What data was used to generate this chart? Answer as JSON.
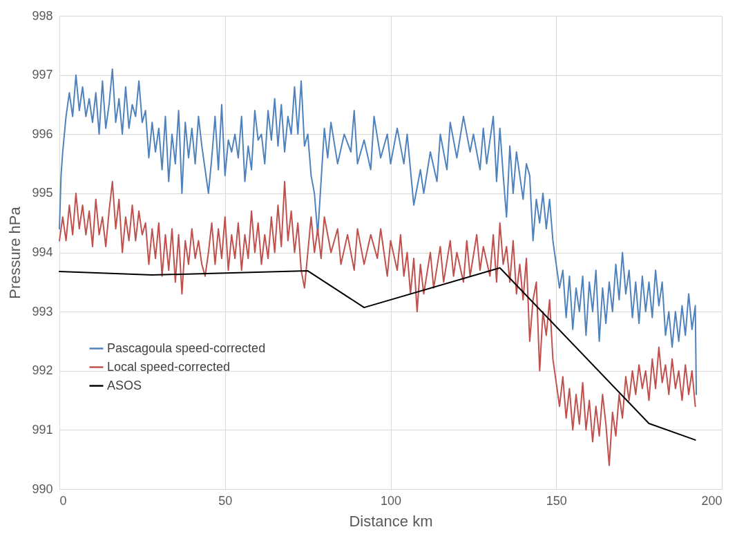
{
  "chart_data": {
    "type": "line",
    "xlabel": "Distance km",
    "ylabel": "Pressure hPa",
    "xlim": [
      0,
      200
    ],
    "xticks": [
      0,
      50,
      100,
      150,
      200
    ],
    "ylim": [
      990,
      998
    ],
    "yticks": [
      990,
      991,
      992,
      993,
      994,
      995,
      996,
      997,
      998
    ],
    "grid": true,
    "legend": "bottom left",
    "marker": "none",
    "line_style": "solid",
    "series": [
      {
        "name": "Pascagoula speed-corrected",
        "color": "#4f81bd",
        "x": [
          0,
          0.5,
          1,
          2,
          3,
          4,
          5,
          6,
          7,
          8,
          9,
          10,
          11,
          12,
          13,
          14,
          15,
          16,
          17,
          18,
          19,
          20,
          21,
          22,
          23,
          24,
          25,
          26,
          27,
          28,
          29,
          30,
          31,
          32,
          33,
          34,
          35,
          36,
          37,
          38,
          39,
          40,
          41,
          42,
          43,
          44,
          45,
          46,
          47,
          48,
          49,
          50,
          51,
          52,
          53,
          54,
          55,
          56,
          57,
          58,
          59,
          60,
          61,
          62,
          63,
          64,
          65,
          66,
          67,
          68,
          69,
          70,
          71,
          72,
          73,
          74,
          75,
          76,
          77,
          78,
          79,
          80,
          81,
          82,
          84,
          86,
          88,
          89,
          90,
          92,
          94,
          95,
          97,
          99,
          100,
          102,
          104,
          105,
          107,
          109,
          110,
          112,
          114,
          115,
          117,
          118,
          120,
          122,
          124,
          125,
          127,
          128,
          129,
          131,
          132,
          133,
          134,
          135,
          136,
          137,
          138,
          140,
          141,
          142,
          143,
          144,
          145,
          146,
          147,
          148,
          149,
          150,
          151,
          152,
          153,
          154,
          155,
          156,
          157,
          158,
          159,
          160,
          161,
          162,
          163,
          164,
          165,
          166,
          167,
          168,
          169,
          170,
          171,
          172,
          173,
          174,
          175,
          176,
          177,
          178,
          179,
          180,
          181,
          182,
          183,
          184,
          185,
          186,
          187,
          188,
          189,
          190,
          191,
          192,
          192.3
        ],
        "values": [
          994.4,
          995.3,
          995.7,
          996.3,
          996.7,
          996.3,
          997.0,
          996.4,
          996.8,
          996.3,
          996.6,
          996.2,
          996.7,
          996.0,
          996.9,
          996.1,
          996.5,
          997.1,
          996.2,
          996.6,
          996.0,
          996.8,
          996.1,
          996.5,
          996.3,
          996.9,
          996.2,
          996.4,
          995.6,
          996.2,
          995.7,
          996.1,
          995.4,
          996.3,
          995.2,
          996.0,
          995.5,
          996.4,
          995.0,
          996.2,
          995.6,
          996.1,
          995.5,
          996.3,
          995.8,
          995.4,
          995.0,
          995.6,
          996.3,
          995.4,
          996.5,
          995.3,
          995.9,
          995.7,
          996.0,
          995.6,
          996.3,
          995.2,
          995.8,
          995.4,
          996.4,
          995.9,
          996.0,
          995.5,
          996.4,
          995.9,
          996.6,
          995.8,
          996.5,
          995.7,
          996.3,
          996.0,
          996.8,
          996.0,
          996.9,
          995.8,
          996.0,
          995.3,
          995.0,
          994.3,
          995.2,
          996.1,
          995.6,
          996.2,
          995.5,
          996.0,
          995.7,
          996.4,
          995.5,
          995.9,
          995.4,
          996.3,
          995.6,
          996.0,
          995.5,
          996.1,
          995.5,
          996.0,
          994.8,
          995.4,
          995.0,
          995.7,
          995.2,
          996.0,
          995.4,
          996.2,
          995.6,
          996.3,
          995.7,
          996.0,
          995.4,
          996.1,
          995.5,
          996.3,
          995.2,
          996.1,
          995.3,
          994.6,
          995.8,
          995.0,
          995.7,
          994.9,
          995.5,
          995.3,
          994.2,
          994.9,
          994.5,
          995.0,
          994.4,
          994.9,
          994.2,
          993.8,
          993.4,
          993.7,
          992.9,
          993.6,
          992.7,
          993.4,
          993.0,
          993.6,
          992.6,
          993.5,
          993.0,
          993.7,
          992.5,
          993.4,
          992.8,
          993.5,
          993.0,
          993.8,
          993.2,
          994.0,
          993.3,
          993.7,
          992.9,
          993.5,
          992.8,
          993.6,
          993.0,
          993.5,
          992.9,
          993.7,
          993.1,
          993.5,
          992.6,
          993.0,
          992.4,
          993.0,
          992.5,
          993.1,
          992.6,
          993.3,
          992.7,
          993.1,
          991.6
        ]
      },
      {
        "name": "Local speed-corrected",
        "color": "#c0504d",
        "x": [
          0,
          1,
          2,
          3,
          4,
          5,
          6,
          7,
          8,
          9,
          10,
          11,
          12,
          13,
          14,
          15,
          16,
          17,
          18,
          19,
          20,
          21,
          22,
          23,
          24,
          25,
          26,
          27,
          28,
          29,
          30,
          31,
          32,
          33,
          34,
          35,
          36,
          37,
          38,
          39,
          40,
          41,
          42,
          43,
          44,
          45,
          46,
          47,
          48,
          49,
          50,
          51,
          52,
          53,
          54,
          55,
          56,
          57,
          58,
          59,
          60,
          61,
          62,
          63,
          64,
          65,
          66,
          67,
          68,
          69,
          70,
          71,
          72,
          73,
          74,
          75,
          76,
          77,
          78,
          79,
          80,
          82,
          84,
          85,
          87,
          89,
          90,
          92,
          94,
          96,
          97,
          99,
          100,
          102,
          103,
          104,
          105,
          106,
          107,
          108,
          109,
          110,
          112,
          113,
          115,
          116,
          118,
          119,
          120,
          122,
          123,
          124,
          126,
          127,
          128,
          130,
          131,
          132,
          133,
          134,
          135,
          136,
          137,
          138,
          139,
          140,
          141,
          142,
          143,
          144,
          145,
          146,
          147,
          148,
          149,
          150,
          151,
          152,
          153,
          154,
          155,
          156,
          157,
          158,
          159,
          160,
          161,
          162,
          163,
          164,
          165,
          166,
          167,
          168,
          169,
          170,
          171,
          172,
          173,
          174,
          175,
          176,
          177,
          178,
          179,
          180,
          181,
          182,
          183,
          184,
          185,
          186,
          187,
          188,
          189,
          190,
          191,
          192
        ],
        "values": [
          994.2,
          994.6,
          994.2,
          994.8,
          994.3,
          995.0,
          994.4,
          994.8,
          994.3,
          994.7,
          994.1,
          994.9,
          994.3,
          994.6,
          994.1,
          994.7,
          995.2,
          994.4,
          994.9,
          994.0,
          994.6,
          994.2,
          994.8,
          994.2,
          994.7,
          994.3,
          994.5,
          993.8,
          994.4,
          993.9,
          994.5,
          993.6,
          994.3,
          993.7,
          994.4,
          993.5,
          994.3,
          993.3,
          994.2,
          993.8,
          994.4,
          993.9,
          994.2,
          993.8,
          993.6,
          994.0,
          994.5,
          993.8,
          994.4,
          993.9,
          994.6,
          993.7,
          994.3,
          993.9,
          994.5,
          993.7,
          994.3,
          993.9,
          994.7,
          994.0,
          994.5,
          993.8,
          994.3,
          993.9,
          994.6,
          994.0,
          994.8,
          994.1,
          995.2,
          994.2,
          994.7,
          994.0,
          994.5,
          993.7,
          993.4,
          994.0,
          994.6,
          994.0,
          994.4,
          993.9,
          994.6,
          994.0,
          994.4,
          993.8,
          994.3,
          993.7,
          994.4,
          993.8,
          994.3,
          993.9,
          994.4,
          993.6,
          994.2,
          993.7,
          994.3,
          993.6,
          994.0,
          993.3,
          993.9,
          993.0,
          993.8,
          993.3,
          994.0,
          993.4,
          994.1,
          993.5,
          994.2,
          993.6,
          994.0,
          993.5,
          994.2,
          993.6,
          994.3,
          993.7,
          994.1,
          993.6,
          994.3,
          993.5,
          994.5,
          993.8,
          994.1,
          993.5,
          994.2,
          993.3,
          993.8,
          993.2,
          993.9,
          992.5,
          993.2,
          993.5,
          992.0,
          993.0,
          992.6,
          993.2,
          992.2,
          991.8,
          991.4,
          991.9,
          991.2,
          991.7,
          991.0,
          991.6,
          991.1,
          991.8,
          991.0,
          991.5,
          990.8,
          991.4,
          990.9,
          991.6,
          991.1,
          990.4,
          991.3,
          990.9,
          991.6,
          991.2,
          991.9,
          991.5,
          992.0,
          991.6,
          992.1,
          991.7,
          992.0,
          991.5,
          992.2,
          991.7,
          992.4,
          991.8,
          992.1,
          991.6,
          992.2,
          991.7,
          992.0,
          991.5,
          992.1,
          991.6,
          992.0,
          991.4
        ]
      },
      {
        "name": "ASOS",
        "color": "#000000",
        "x": [
          0,
          28,
          75,
          92,
          133,
          178,
          192
        ],
        "values": [
          993.68,
          993.62,
          993.69,
          993.07,
          993.74,
          991.11,
          990.83
        ]
      }
    ]
  }
}
